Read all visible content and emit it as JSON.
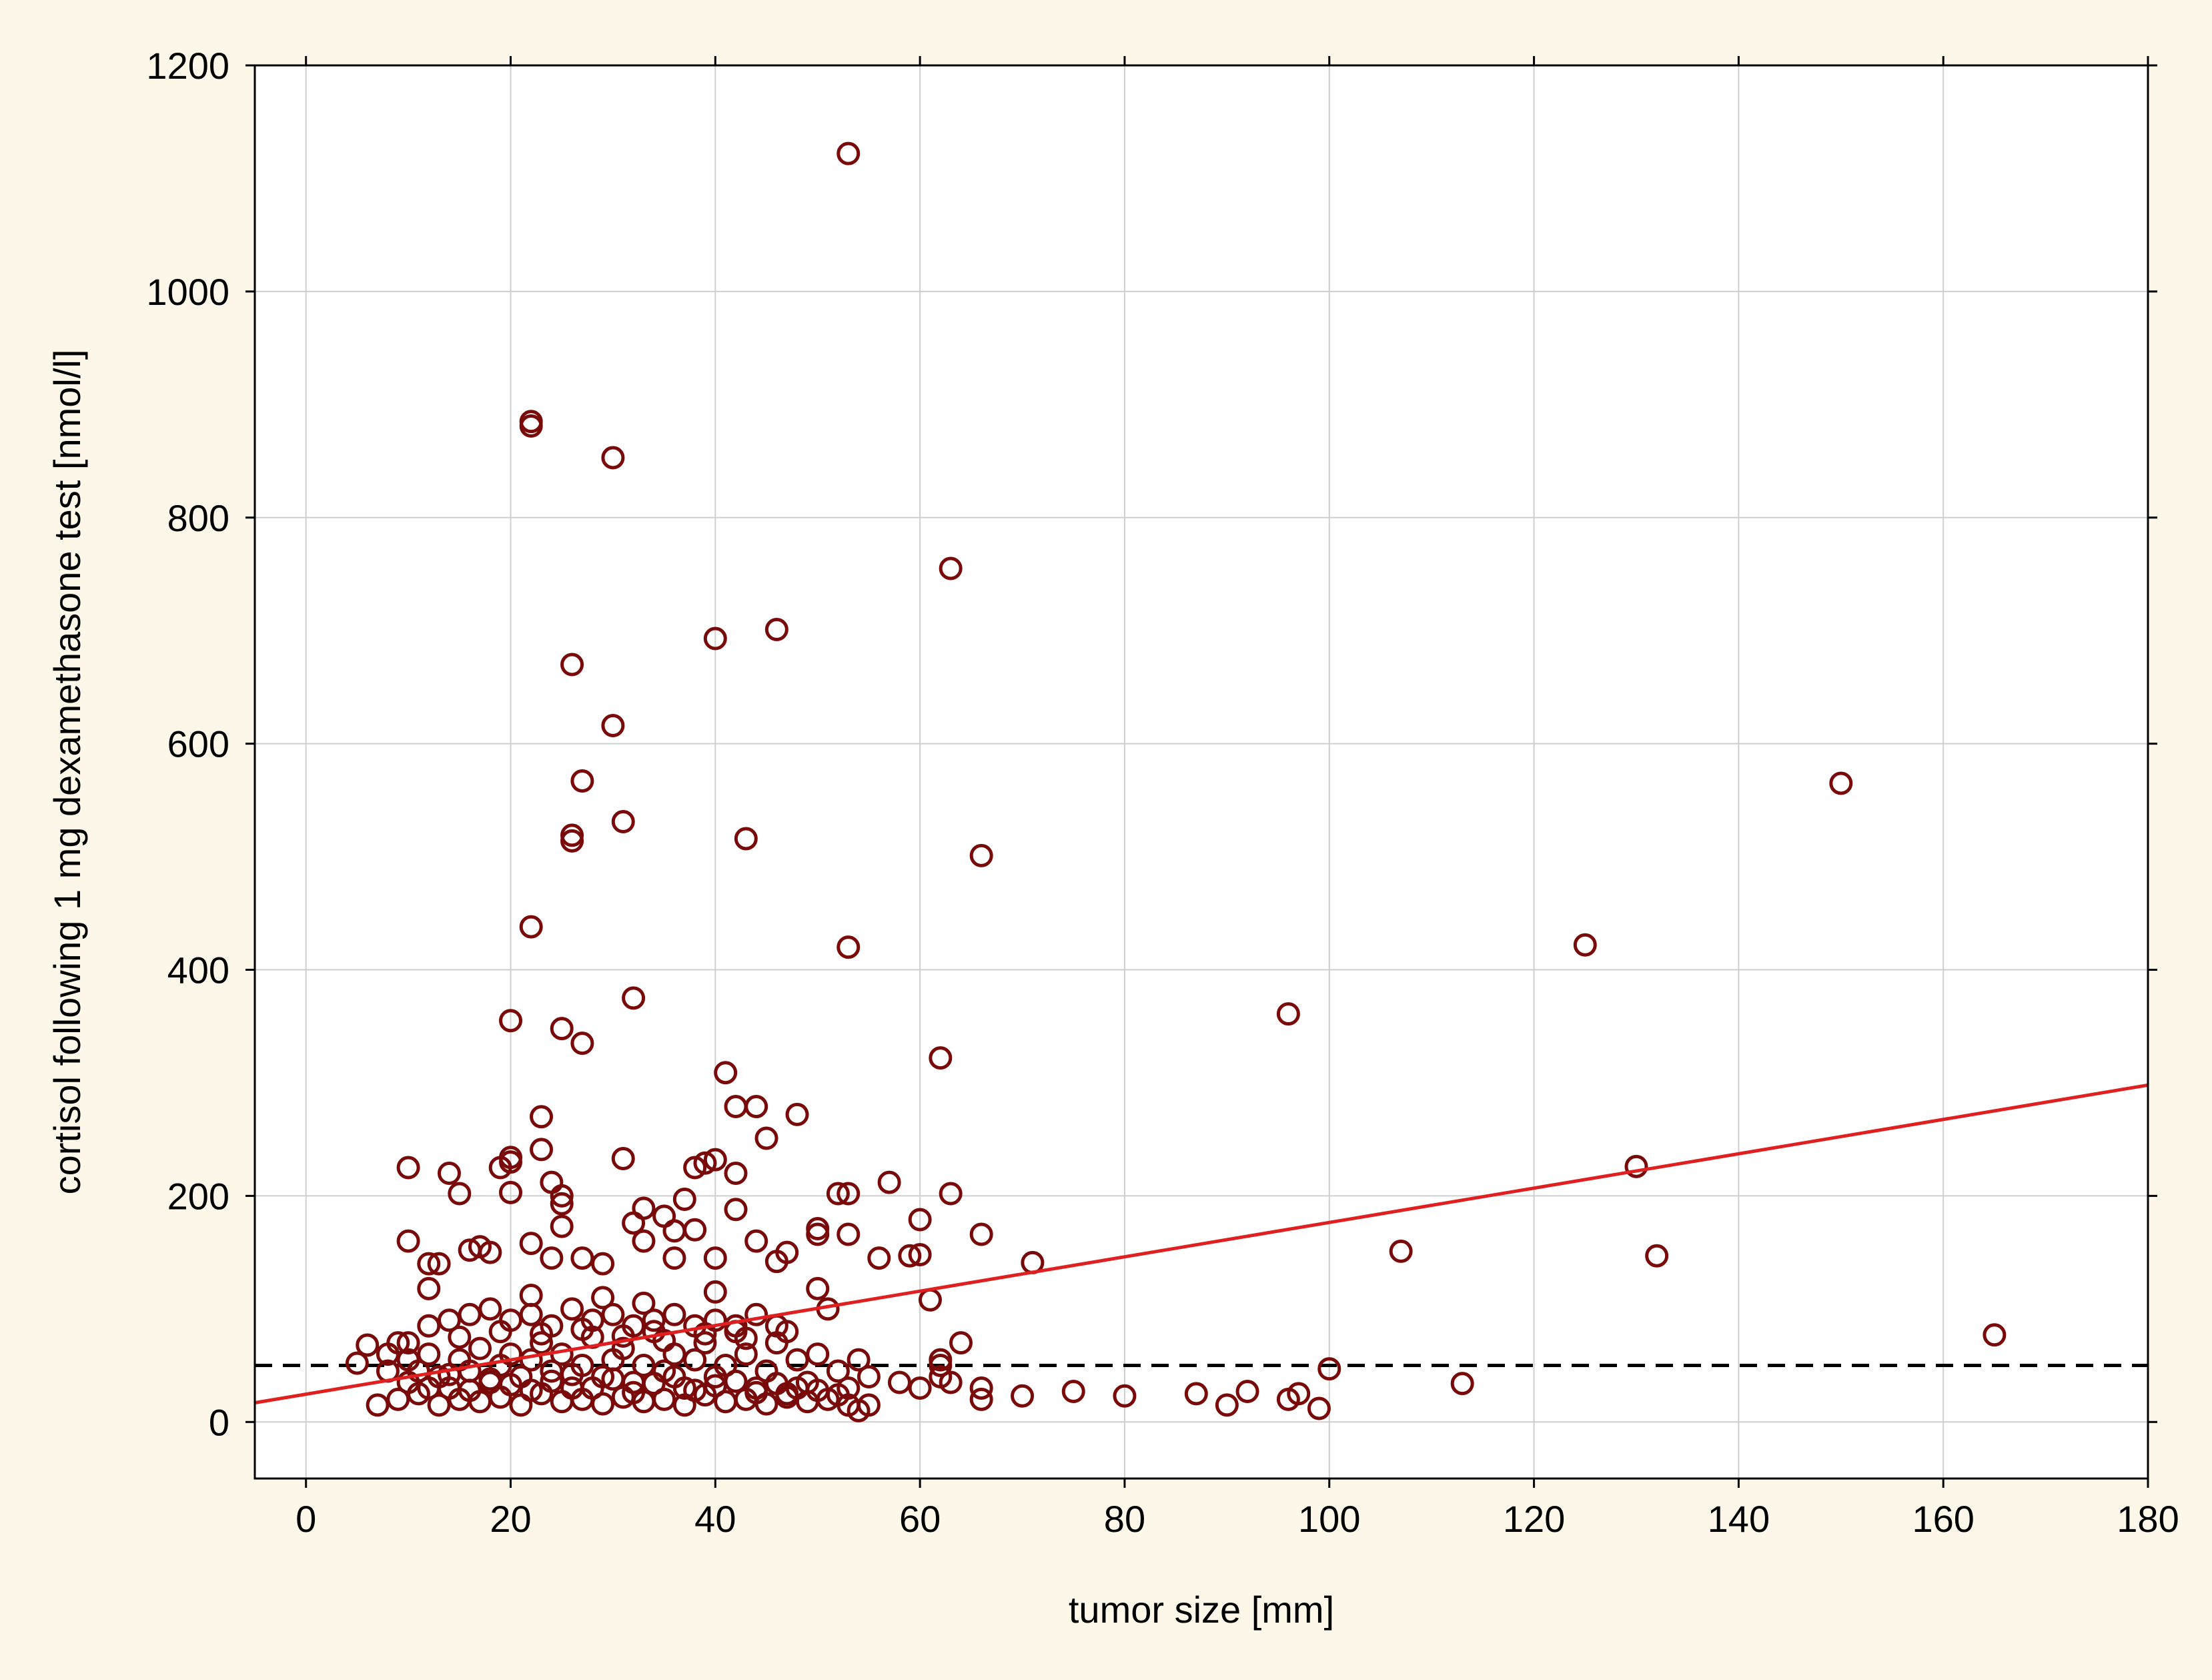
{
  "chart_data": {
    "type": "scatter",
    "title": "",
    "xlabel": "tumor size [mm]",
    "ylabel": "cortisol following 1 mg dexamethasone test [nmol/l]",
    "xlim": [
      -5,
      180
    ],
    "ylim": [
      -50,
      1200
    ],
    "xticks": [
      0,
      20,
      40,
      60,
      80,
      100,
      120,
      140,
      160,
      180
    ],
    "yticks": [
      0,
      200,
      400,
      600,
      800,
      1000,
      1200
    ],
    "grid": true,
    "legend": "none",
    "colors": {
      "points": "#7a0a0a",
      "fit_line": "#e02020",
      "reference_line": "#000000",
      "grid": "#cfcfcf"
    },
    "fit_line": {
      "x": [
        -5,
        180
      ],
      "y": [
        17,
        298
      ]
    },
    "reference_line": {
      "y": 50,
      "style": "dashed"
    },
    "series": [
      {
        "points": [
          [
            53,
            1122
          ],
          [
            22,
            885
          ],
          [
            22,
            881
          ],
          [
            30,
            853
          ],
          [
            63,
            755
          ],
          [
            46,
            701
          ],
          [
            40,
            693
          ],
          [
            26,
            670
          ],
          [
            30,
            616
          ],
          [
            27,
            567
          ],
          [
            150,
            565
          ],
          [
            31,
            531
          ],
          [
            26,
            519
          ],
          [
            26,
            514
          ],
          [
            43,
            516
          ],
          [
            66,
            501
          ],
          [
            22,
            438
          ],
          [
            53,
            420
          ],
          [
            125,
            422
          ],
          [
            32,
            375
          ],
          [
            96,
            361
          ],
          [
            20,
            355
          ],
          [
            25,
            348
          ],
          [
            27,
            335
          ],
          [
            62,
            322
          ],
          [
            41,
            309
          ],
          [
            42,
            279
          ],
          [
            44,
            279
          ],
          [
            48,
            272
          ],
          [
            23,
            270
          ],
          [
            45,
            251
          ],
          [
            23,
            241
          ],
          [
            10,
            225
          ],
          [
            14,
            220
          ],
          [
            19,
            225
          ],
          [
            20,
            230
          ],
          [
            20,
            234
          ],
          [
            31,
            233
          ],
          [
            38,
            225
          ],
          [
            39,
            229
          ],
          [
            40,
            232
          ],
          [
            42,
            220
          ],
          [
            130,
            226
          ],
          [
            24,
            212
          ],
          [
            57,
            212
          ],
          [
            15,
            202
          ],
          [
            20,
            203
          ],
          [
            25,
            200
          ],
          [
            25,
            193
          ],
          [
            52,
            202
          ],
          [
            53,
            202
          ],
          [
            63,
            202
          ],
          [
            37,
            197
          ],
          [
            33,
            189
          ],
          [
            42,
            188
          ],
          [
            35,
            182
          ],
          [
            60,
            179
          ],
          [
            32,
            176
          ],
          [
            25,
            173
          ],
          [
            50,
            171
          ],
          [
            50,
            166
          ],
          [
            53,
            166
          ],
          [
            66,
            166
          ],
          [
            36,
            169
          ],
          [
            38,
            170
          ],
          [
            44,
            160
          ],
          [
            10,
            160
          ],
          [
            12,
            140
          ],
          [
            13,
            140
          ],
          [
            16,
            152
          ],
          [
            17,
            155
          ],
          [
            18,
            150
          ],
          [
            22,
            158
          ],
          [
            24,
            145
          ],
          [
            27,
            145
          ],
          [
            29,
            140
          ],
          [
            33,
            160
          ],
          [
            36,
            145
          ],
          [
            40,
            145
          ],
          [
            46,
            142
          ],
          [
            47,
            150
          ],
          [
            56,
            145
          ],
          [
            59,
            147
          ],
          [
            60,
            148
          ],
          [
            71,
            141
          ],
          [
            107,
            151
          ],
          [
            132,
            147
          ],
          [
            12,
            118
          ],
          [
            22,
            112
          ],
          [
            29,
            110
          ],
          [
            33,
            105
          ],
          [
            40,
            115
          ],
          [
            50,
            118
          ],
          [
            51,
            100
          ],
          [
            61,
            108
          ],
          [
            64,
            70
          ],
          [
            165,
            77
          ],
          [
            6,
            68
          ],
          [
            8,
            60
          ],
          [
            10,
            55
          ],
          [
            10,
            70
          ],
          [
            11,
            45
          ],
          [
            12,
            60
          ],
          [
            13,
            40
          ],
          [
            14,
            30
          ],
          [
            15,
            55
          ],
          [
            16,
            45
          ],
          [
            17,
            65
          ],
          [
            18,
            35
          ],
          [
            19,
            50
          ],
          [
            20,
            60
          ],
          [
            21,
            40
          ],
          [
            22,
            55
          ],
          [
            23,
            70
          ],
          [
            24,
            45
          ],
          [
            25,
            60
          ],
          [
            26,
            30
          ],
          [
            27,
            50
          ],
          [
            28,
            75
          ],
          [
            29,
            40
          ],
          [
            30,
            55
          ],
          [
            31,
            65
          ],
          [
            32,
            35
          ],
          [
            33,
            50
          ],
          [
            34,
            80
          ],
          [
            35,
            45
          ],
          [
            36,
            60
          ],
          [
            37,
            30
          ],
          [
            38,
            55
          ],
          [
            39,
            70
          ],
          [
            40,
            40
          ],
          [
            41,
            50
          ],
          [
            42,
            85
          ],
          [
            43,
            60
          ],
          [
            44,
            30
          ],
          [
            45,
            45
          ],
          [
            46,
            70
          ],
          [
            47,
            25
          ],
          [
            48,
            55
          ],
          [
            49,
            35
          ],
          [
            50,
            60
          ],
          [
            52,
            45
          ],
          [
            53,
            30
          ],
          [
            54,
            55
          ],
          [
            55,
            40
          ],
          [
            9,
            20
          ],
          [
            11,
            25
          ],
          [
            13,
            15
          ],
          [
            15,
            20
          ],
          [
            17,
            18
          ],
          [
            19,
            22
          ],
          [
            21,
            15
          ],
          [
            23,
            25
          ],
          [
            25,
            18
          ],
          [
            27,
            20
          ],
          [
            29,
            16
          ],
          [
            31,
            22
          ],
          [
            33,
            18
          ],
          [
            35,
            20
          ],
          [
            37,
            15
          ],
          [
            39,
            24
          ],
          [
            41,
            18
          ],
          [
            43,
            20
          ],
          [
            45,
            16
          ],
          [
            47,
            22
          ],
          [
            49,
            18
          ],
          [
            51,
            20
          ],
          [
            53,
            15
          ],
          [
            12,
            85
          ],
          [
            14,
            90
          ],
          [
            16,
            95
          ],
          [
            18,
            100
          ],
          [
            20,
            90
          ],
          [
            22,
            95
          ],
          [
            24,
            85
          ],
          [
            26,
            100
          ],
          [
            28,
            90
          ],
          [
            30,
            95
          ],
          [
            32,
            85
          ],
          [
            34,
            90
          ],
          [
            36,
            95
          ],
          [
            38,
            85
          ],
          [
            40,
            90
          ],
          [
            42,
            80
          ],
          [
            44,
            95
          ],
          [
            46,
            85
          ],
          [
            10,
            35
          ],
          [
            12,
            30
          ],
          [
            14,
            42
          ],
          [
            16,
            28
          ],
          [
            18,
            38
          ],
          [
            20,
            33
          ],
          [
            22,
            28
          ],
          [
            24,
            36
          ],
          [
            26,
            42
          ],
          [
            28,
            30
          ],
          [
            30,
            38
          ],
          [
            32,
            26
          ],
          [
            34,
            34
          ],
          [
            36,
            40
          ],
          [
            38,
            28
          ],
          [
            40,
            32
          ],
          [
            42,
            36
          ],
          [
            44,
            26
          ],
          [
            46,
            34
          ],
          [
            48,
            30
          ],
          [
            50,
            28
          ],
          [
            52,
            24
          ],
          [
            15,
            75
          ],
          [
            19,
            80
          ],
          [
            23,
            78
          ],
          [
            27,
            82
          ],
          [
            31,
            76
          ],
          [
            35,
            72
          ],
          [
            39,
            78
          ],
          [
            43,
            74
          ],
          [
            47,
            80
          ],
          [
            5,
            52
          ],
          [
            7,
            15
          ],
          [
            8,
            45
          ],
          [
            9,
            70
          ],
          [
            54,
            10
          ],
          [
            55,
            15
          ],
          [
            58,
            35
          ],
          [
            60,
            30
          ],
          [
            62,
            40
          ],
          [
            62,
            50
          ],
          [
            62,
            55
          ],
          [
            63,
            35
          ],
          [
            66,
            30
          ],
          [
            66,
            20
          ],
          [
            70,
            23
          ],
          [
            75,
            27
          ],
          [
            80,
            23
          ],
          [
            87,
            25
          ],
          [
            90,
            15
          ],
          [
            92,
            27
          ],
          [
            96,
            20
          ],
          [
            97,
            25
          ],
          [
            99,
            12
          ],
          [
            100,
            47
          ],
          [
            113,
            34
          ]
        ]
      }
    ]
  }
}
